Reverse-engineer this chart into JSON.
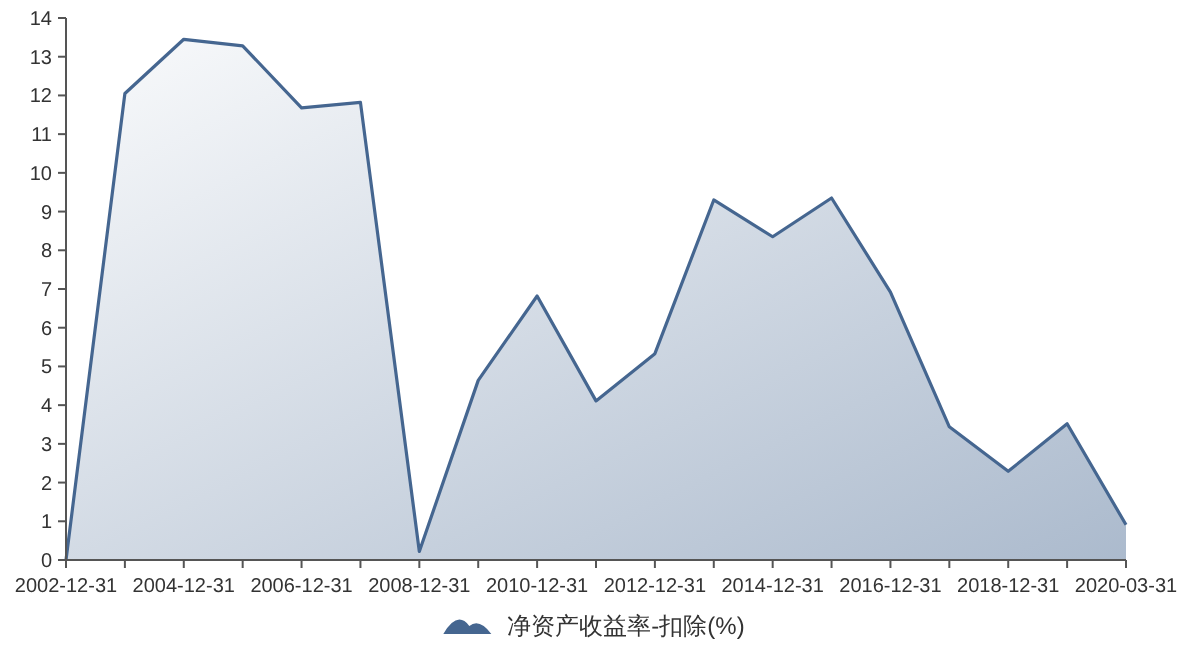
{
  "chart_data": {
    "type": "area",
    "categories": [
      "2002-12-31",
      null,
      "2004-12-31",
      null,
      "2006-12-31",
      null,
      "2008-12-31",
      null,
      "2010-12-31",
      null,
      "2012-12-31",
      null,
      "2014-12-31",
      null,
      "2016-12-31",
      null,
      "2018-12-31",
      null,
      "2020-03-31"
    ],
    "series": [
      {
        "name": "净资产收益率-扣除(%)",
        "color": "#456690",
        "values": [
          0,
          12.05,
          13.45,
          13.28,
          11.68,
          11.82,
          0.22,
          4.64,
          6.82,
          4.11,
          5.33,
          9.3,
          8.35,
          9.35,
          6.92,
          3.44,
          2.29,
          3.52,
          0.91
        ]
      }
    ],
    "ylim": [
      0,
      14
    ],
    "yticks": [
      0,
      1,
      2,
      3,
      4,
      5,
      6,
      7,
      8,
      9,
      10,
      11,
      12,
      13,
      14
    ],
    "grid": false,
    "legend": "bottom"
  }
}
